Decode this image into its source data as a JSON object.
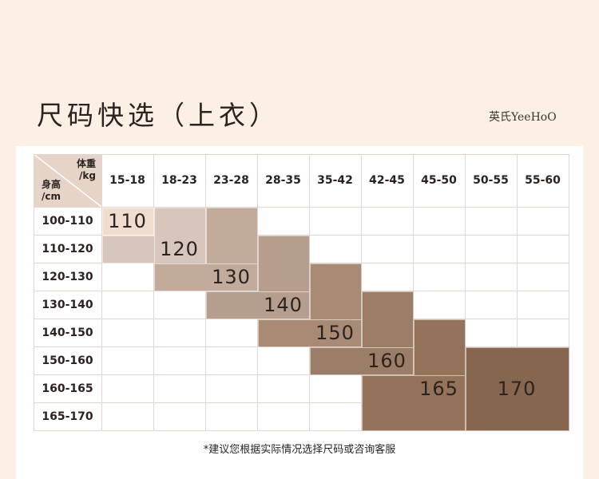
{
  "page": {
    "title": "尺码快选（上衣）",
    "brand": "英氏YeeHoO",
    "note": "*建议您根据实际情况选择尺码或咨询客服"
  },
  "table": {
    "corner": {
      "top_line1": "体重",
      "top_line2": "/kg",
      "bottom_line1": "身高",
      "bottom_line2": "/cm"
    },
    "weights": [
      "15-18",
      "18-23",
      "23-28",
      "28-35",
      "35-42",
      "42-45",
      "45-50",
      "50-55",
      "55-60"
    ],
    "heights": [
      "100-110",
      "110-120",
      "120-130",
      "130-140",
      "140-150",
      "150-160",
      "160-165",
      "165-170"
    ],
    "sizes": [
      {
        "label": "110",
        "col_start": 0,
        "col_end": 0,
        "row_start": 0,
        "row_end": 0,
        "color": "#f0ddd0"
      },
      {
        "label": "120",
        "col_start": 0,
        "col_end": 1,
        "row_start": 1,
        "row_end": 1,
        "color": "#d7c6bb"
      },
      {
        "label": "120",
        "col_start": 1,
        "col_end": 1,
        "row_start": 0,
        "row_end": 2,
        "color": "#d7c6bb",
        "hide_label": true
      },
      {
        "label": "130",
        "col_start": 2,
        "col_end": 2,
        "row_start": 0,
        "row_end": 3,
        "color": "#c2ab9b"
      },
      {
        "label": "130",
        "col_start": 1,
        "col_end": 2,
        "row_start": 2,
        "row_end": 2,
        "color": "#c2ab9b",
        "hide_label": true
      },
      {
        "label": "140",
        "col_start": 3,
        "col_end": 3,
        "row_start": 1,
        "row_end": 4,
        "color": "#b69e8e"
      },
      {
        "label": "140",
        "col_start": 2,
        "col_end": 3,
        "row_start": 3,
        "row_end": 3,
        "color": "#b69e8e",
        "hide_label": true
      },
      {
        "label": "150",
        "col_start": 4,
        "col_end": 4,
        "row_start": 2,
        "row_end": 5,
        "color": "#a88a75"
      },
      {
        "label": "150",
        "col_start": 3,
        "col_end": 4,
        "row_start": 4,
        "row_end": 4,
        "color": "#a88a75",
        "hide_label": true
      },
      {
        "label": "160",
        "col_start": 5,
        "col_end": 5,
        "row_start": 3,
        "row_end": 7,
        "color": "#9c7e68"
      },
      {
        "label": "160",
        "col_start": 4,
        "col_end": 5,
        "row_start": 5,
        "row_end": 5,
        "color": "#9c7e68",
        "hide_label": true
      },
      {
        "label": "165",
        "col_start": 6,
        "col_end": 6,
        "row_start": 4,
        "row_end": 7,
        "color": "#94735a"
      },
      {
        "label": "165",
        "col_start": 5,
        "col_end": 6,
        "row_start": 6,
        "row_end": 7,
        "color": "#94735a",
        "hide_label": true
      },
      {
        "label": "170",
        "col_start": 7,
        "col_end": 8,
        "row_start": 5,
        "row_end": 7,
        "color": "#876650"
      }
    ],
    "grid_color": "#e2d6cf"
  }
}
